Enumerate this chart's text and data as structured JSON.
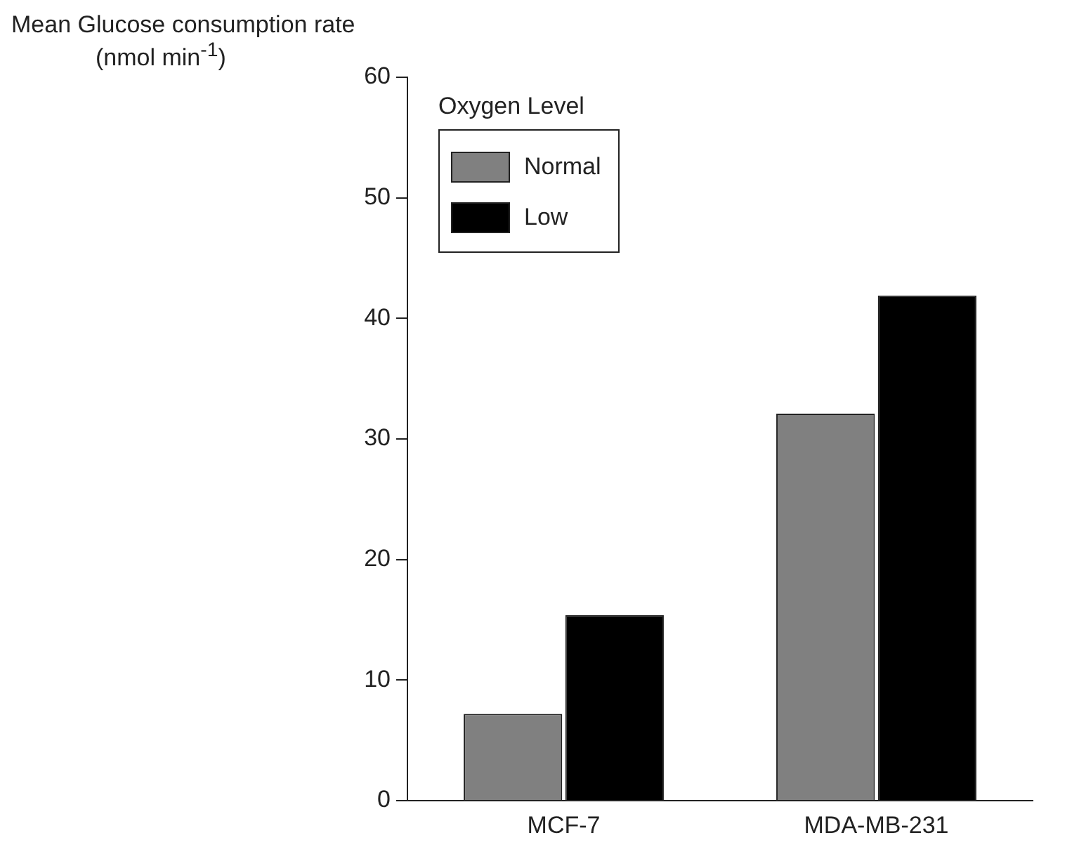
{
  "chart_data": {
    "type": "bar",
    "ylabel": "Mean Glucose consumption rate (nmol min$^{-1}$)",
    "legend_title": "Oxygen Level",
    "categories": [
      "MCF-7",
      "MDA-MB-231"
    ],
    "series": [
      {
        "name": "Normal",
        "color": "#808080",
        "values": [
          7.2,
          32.1
        ]
      },
      {
        "name": "Low",
        "color": "#000000",
        "values": [
          15.4,
          41.9
        ]
      }
    ],
    "ylim": [
      0,
      60
    ],
    "yticks": [
      0,
      10,
      20,
      30,
      40,
      50,
      60
    ],
    "grid": false,
    "legend": "top left"
  }
}
